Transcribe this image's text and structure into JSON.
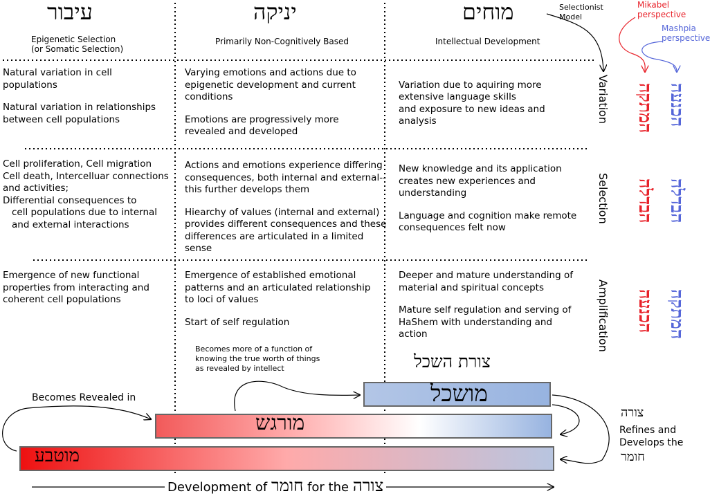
{
  "columns": [
    {
      "heb": "עיבור",
      "sub": "Epigenetic Selection\n(or Somatic Selection)"
    },
    {
      "heb": "יניקה",
      "sub": "Primarily Non-Cognitively Based"
    },
    {
      "heb": "מוחים",
      "sub": "Intellectual Development"
    }
  ],
  "legend": {
    "selectionist": "Selectionist\nModel",
    "mikabel": "Mikabel\nperspective",
    "mashpia": "Mashpia\nperspective"
  },
  "rows": [
    {
      "label": "Variation",
      "heb_red": "המתקה",
      "heb_blue": "הכנעה",
      "cells": [
        [
          "Natural variation in cell populations",
          "Natural variation in relationships between cell populations"
        ],
        [
          "Varying emotions and actions due to epigenetic development and current conditions",
          "Emotions are progressively more revealed and developed"
        ],
        [
          "Variation due to aquiring more extensive language skills\nand exposure to new ideas and analysis"
        ]
      ]
    },
    {
      "label": "Selection",
      "heb_red": "הבדלה",
      "heb_blue": "הבדלה",
      "cells": [
        [
          "Cell proliferation, Cell migration\nCell death, Intercelluar connections and  activities;\nDifferential consequences to",
          "cell populations due to internal and external interactions"
        ],
        [
          "Actions and emotions experience differing consequences, both internal and external--this further develops them",
          "Hiearchy of values (internal and external) provides different consequences and these differences are articulated in a limited sense"
        ],
        [
          "New knowledge and its application creates new experiences and understanding",
          "Language and cognition make remote consequences felt now"
        ]
      ]
    },
    {
      "label": "Amplification",
      "heb_red": "הכנעה",
      "heb_blue": "המתקה",
      "cells": [
        [
          "Emergence of new functional properties from interacting and coherent cell populations"
        ],
        [
          "Emergence of established emotional patterns and an articulated relationship to loci of values",
          "Start of self regulation"
        ],
        [
          "Deeper and mature understanding of material and spiritual concepts",
          "Mature self regulation and serving of HaShem with understanding and action"
        ]
      ]
    }
  ],
  "annotations": {
    "becomes_function": "Becomes more of a function of\nknowing the true worth of things\nas revealed by intellect",
    "tzuras_hasechel": "צורת השכל",
    "becomes_revealed": "Becomes Revealed in",
    "tzura": "צורה",
    "refines": "Refines and\nDevelops the",
    "chomer": "חומר"
  },
  "bars": [
    {
      "label": "מושכל",
      "colors": [
        "#b3c6e6",
        "#97b3e0"
      ]
    },
    {
      "label": "מורגש",
      "colors": [
        "#f25a5a",
        "#ffaaaa",
        "#ffffff",
        "#97b3e0"
      ]
    },
    {
      "label": "מוטבע",
      "colors": [
        "#ee1111",
        "#ffaaaa",
        "#b8c5e0"
      ]
    }
  ],
  "footer": {
    "pre": "Development of",
    "w1": "חומר",
    "mid": "for the",
    "w2": "צורה"
  }
}
